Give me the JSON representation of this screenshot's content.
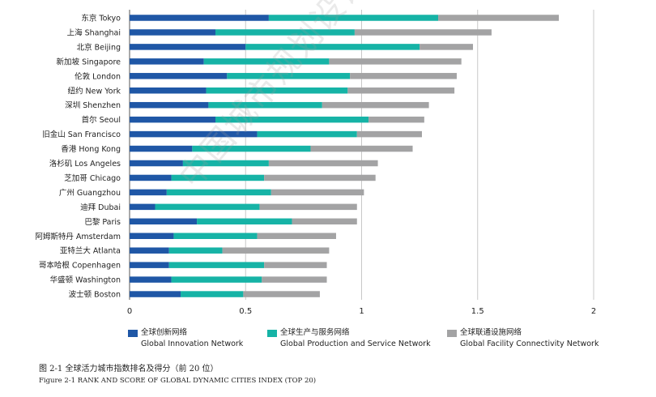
{
  "chart_data": {
    "type": "bar",
    "orientation": "horizontal",
    "stacked": true,
    "categories": [
      "东京 Tokyo",
      "上海 Shanghai",
      "北京 Beijing",
      "新加坡 Singapore",
      "伦敦 London",
      "纽约 New York",
      "深圳 Shenzhen",
      "首尔 Seoul",
      "旧金山 San Francisco",
      "香港 Hong Kong",
      "洛杉矶 Los Angeles",
      "芝加哥 Chicago",
      "广州 Guangzhou",
      "迪拜 Dubai",
      "巴黎 Paris",
      "阿姆斯特丹 Amsterdam",
      "亚特兰大 Atlanta",
      "哥本哈根 Copenhagen",
      "华盛顿 Washington",
      "波士顿 Boston"
    ],
    "series": [
      {
        "name_cn": "全球创新网络",
        "name_en": "Global Innovation Network",
        "color": "#1f57a6",
        "values": [
          0.6,
          0.37,
          0.5,
          0.32,
          0.42,
          0.33,
          0.34,
          0.37,
          0.55,
          0.27,
          0.23,
          0.18,
          0.16,
          0.11,
          0.29,
          0.19,
          0.17,
          0.17,
          0.18,
          0.22
        ]
      },
      {
        "name_cn": "全球生产与服务网络",
        "name_en": "Global Production and Service Network",
        "color": "#16b3a6",
        "values": [
          0.73,
          0.6,
          0.75,
          0.54,
          0.53,
          0.61,
          0.49,
          0.66,
          0.43,
          0.51,
          0.37,
          0.4,
          0.45,
          0.45,
          0.41,
          0.36,
          0.23,
          0.41,
          0.39,
          0.27
        ]
      },
      {
        "name_cn": "全球联通设施网络",
        "name_en": "Global Facility Connectivity Network",
        "color": "#a3a3a4",
        "values": [
          0.52,
          0.59,
          0.23,
          0.57,
          0.46,
          0.46,
          0.46,
          0.24,
          0.28,
          0.44,
          0.47,
          0.48,
          0.4,
          0.42,
          0.28,
          0.34,
          0.46,
          0.27,
          0.28,
          0.33
        ]
      }
    ],
    "x_ticks": [
      "0",
      "0.5",
      "1",
      "1.5",
      "2"
    ],
    "xlim": [
      0,
      2
    ],
    "grid": "vertical"
  },
  "caption": {
    "cn": "图 2-1 全球活力城市指数排名及得分（前 20 位）",
    "en": "Figure 2-1 RANK AND SCORE OF GLOBAL DYNAMIC CITIES INDEX (TOP 20)"
  },
  "watermark": "中国城市规划设计研究院"
}
